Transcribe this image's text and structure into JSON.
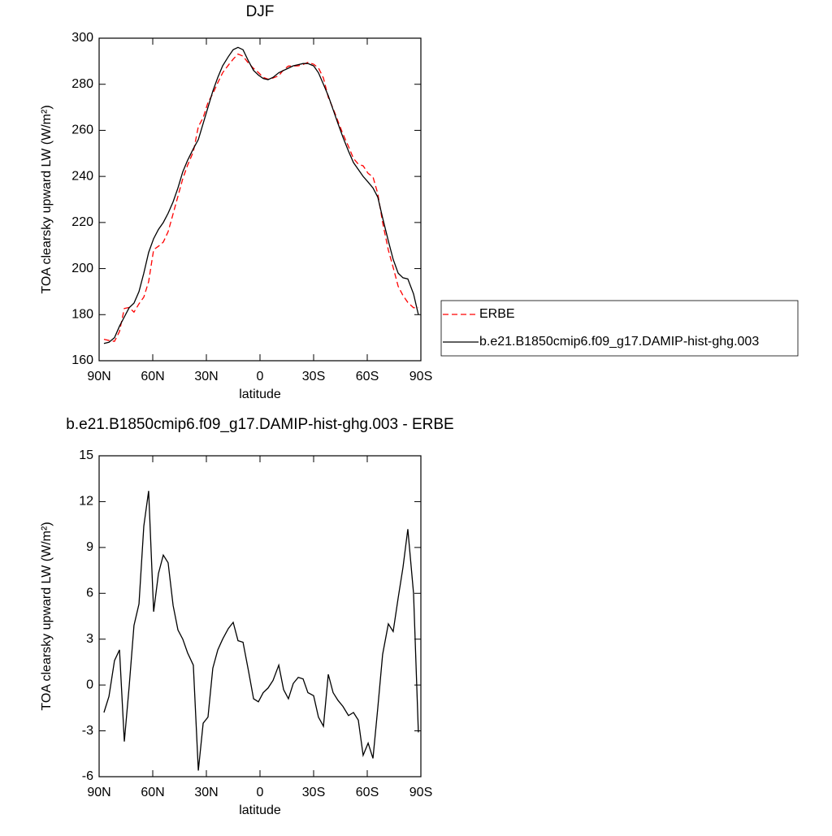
{
  "chart_data": [
    {
      "type": "line",
      "title": "DJF",
      "x_label": "latitude",
      "y_label": "TOA clearsky upward LW (W/m²)",
      "x": [
        87.3,
        84.5,
        81.4,
        78.6,
        75.9,
        73.2,
        70.5,
        67.7,
        65,
        62.3,
        59.5,
        56.8,
        54.1,
        51.4,
        48.6,
        45.9,
        43.2,
        40.5,
        37.3,
        34.5,
        31.8,
        29.1,
        26.4,
        23.6,
        20.9,
        17.7,
        15,
        12.3,
        9.5,
        6.4,
        3.6,
        0.9,
        -1.8,
        -4.5,
        -7.3,
        -10.5,
        -13.2,
        -15.9,
        -18.6,
        -21.4,
        -24.1,
        -26.8,
        -30,
        -32.7,
        -35.5,
        -38.2,
        -40.9,
        -43.6,
        -46.4,
        -49.5,
        -52.3,
        -55,
        -57.7,
        -60.5,
        -63.2,
        -65.9,
        -68.6,
        -71.8,
        -74.5,
        -77.3,
        -80,
        -82.7,
        -85.9,
        -88.6
      ],
      "series": [
        {
          "name": "ERBE",
          "color": "#ff0000",
          "style": "dashed",
          "values": [
            169.3,
            168.8,
            168.4,
            172.7,
            182.7,
            183.1,
            181.1,
            184.7,
            187.6,
            194.3,
            208.2,
            209.7,
            211.5,
            216,
            223.8,
            231.4,
            239,
            244.9,
            250.7,
            261.6,
            265.5,
            272.1,
            275.9,
            280.7,
            285,
            288.3,
            290.9,
            293.1,
            292.2,
            289.1,
            286.9,
            285.1,
            283,
            282.2,
            282.7,
            283.7,
            286.3,
            287.9,
            287.9,
            288,
            288.6,
            289.5,
            288.7,
            287.1,
            282.7,
            274.3,
            269.5,
            264,
            258.4,
            253,
            247.8,
            245.3,
            244.6,
            241.3,
            239.8,
            232.5,
            220,
            208,
            200.5,
            192.3,
            188.3,
            185.3,
            183,
            183.1
          ]
        },
        {
          "name": "b.e21.B1850cmip6.f09_g17.DAMIP-hist-ghg.003",
          "color": "#000000",
          "style": "solid",
          "values": [
            167.5,
            168,
            170,
            175,
            179,
            183,
            185,
            190,
            198,
            207,
            213,
            217,
            220,
            224,
            229,
            235,
            242,
            247,
            252,
            256,
            263,
            270,
            277,
            283,
            288,
            292,
            295,
            296,
            295,
            290,
            286,
            284,
            282.5,
            282,
            283,
            285,
            286,
            287,
            288,
            288.5,
            289,
            289,
            288,
            285,
            280,
            275,
            269,
            263,
            257,
            251,
            246,
            243,
            240,
            237.5,
            235,
            231,
            222,
            212,
            204,
            198,
            196,
            195.5,
            189,
            180
          ]
        }
      ],
      "xlim": [
        90,
        -90
      ],
      "xticks": [
        {
          "value": 90,
          "label": "90N"
        },
        {
          "value": 60,
          "label": "60N"
        },
        {
          "value": 30,
          "label": "30N"
        },
        0,
        {
          "value": -30,
          "label": "30S"
        },
        {
          "value": -60,
          "label": "60S"
        },
        {
          "value": -90,
          "label": "90S"
        }
      ],
      "ylim": [
        160,
        300
      ],
      "yticks": [
        160,
        180,
        200,
        220,
        240,
        260,
        280,
        300
      ],
      "grid": false,
      "legend": "right"
    },
    {
      "type": "line",
      "title": "b.e21.B1850cmip6.f09_g17.DAMIP-hist-ghg.003 - ERBE",
      "x_label": "latitude",
      "y_label": "TOA clearsky upward LW (W/m²)",
      "x": [
        87.3,
        84.5,
        81.4,
        78.6,
        75.9,
        73.2,
        70.5,
        67.7,
        65,
        62.3,
        59.5,
        56.8,
        54.1,
        51.4,
        48.6,
        45.9,
        43.2,
        40.5,
        37.3,
        34.5,
        31.8,
        29.1,
        26.4,
        23.6,
        20.9,
        17.7,
        15,
        12.3,
        9.5,
        6.4,
        3.6,
        0.9,
        -1.8,
        -4.5,
        -7.3,
        -10.5,
        -13.2,
        -15.9,
        -18.6,
        -21.4,
        -24.1,
        -26.8,
        -30,
        -32.7,
        -35.5,
        -38.2,
        -40.9,
        -43.6,
        -46.4,
        -49.5,
        -52.3,
        -55,
        -57.7,
        -60.5,
        -63.2,
        -65.9,
        -68.6,
        -71.8,
        -74.5,
        -77.3,
        -80,
        -82.7,
        -85.9,
        -88.6
      ],
      "color": "#000000",
      "values": [
        -1.8,
        -0.75,
        1.6,
        2.3,
        -3.7,
        -0.1,
        3.9,
        5.3,
        10.4,
        12.7,
        4.8,
        7.3,
        8.5,
        8,
        5.2,
        3.6,
        3,
        2.1,
        1.3,
        -5.6,
        -2.5,
        -2.1,
        1.1,
        2.3,
        3,
        3.7,
        4.1,
        2.9,
        2.8,
        0.9,
        -0.9,
        -1.1,
        -0.5,
        -0.2,
        0.3,
        1.3,
        -0.3,
        -0.9,
        0.1,
        0.5,
        0.4,
        -0.5,
        -0.7,
        -2.1,
        -2.7,
        0.7,
        -0.5,
        -1,
        -1.4,
        -2,
        -1.8,
        -2.3,
        -4.6,
        -3.8,
        -4.8,
        -1.5,
        2,
        4,
        3.5,
        5.7,
        7.7,
        10.2,
        6,
        -3.1
      ],
      "xlim": [
        90,
        -90
      ],
      "xticks": [
        {
          "value": 90,
          "label": "90N"
        },
        {
          "value": 60,
          "label": "60N"
        },
        {
          "value": 30,
          "label": "30N"
        },
        0,
        {
          "value": -30,
          "label": "30S"
        },
        {
          "value": -60,
          "label": "60S"
        },
        {
          "value": -90,
          "label": "90S"
        }
      ],
      "ylim": [
        -6,
        15
      ],
      "yticks": [
        -6,
        -3,
        0,
        3,
        6,
        9,
        12,
        15
      ],
      "grid": false
    }
  ]
}
